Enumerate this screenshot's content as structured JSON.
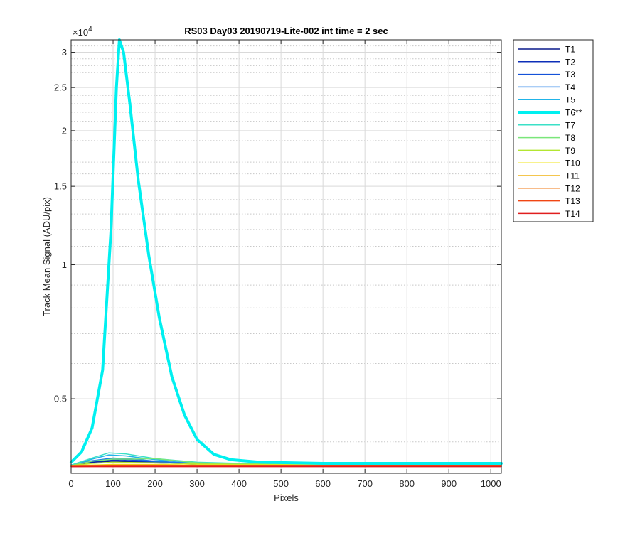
{
  "chart_data": {
    "type": "line",
    "title": "RS03 Day03 20190719-Lite-002 int time = 2 sec",
    "xlabel": "Pixels",
    "ylabel": "Track Mean Signal (ADU/pix)",
    "y_exponent_label": "×10",
    "y_exponent_power": "4",
    "xlim": [
      0,
      1025
    ],
    "ylim": [
      0.34,
      3.2
    ],
    "y_scale": "log",
    "grid": true,
    "minor_grid": true,
    "legend_position": "outside-right",
    "x_ticks": [
      0,
      100,
      200,
      300,
      400,
      500,
      600,
      700,
      800,
      900,
      1000
    ],
    "x_tick_labels": [
      "0",
      "100",
      "200",
      "300",
      "400",
      "500",
      "600",
      "700",
      "800",
      "900",
      "1000"
    ],
    "y_ticks": [
      0.5,
      1,
      1.5,
      2,
      2.5,
      3
    ],
    "y_tick_labels": [
      "0.5",
      "1",
      "1.5",
      "2",
      "2.5",
      "3"
    ],
    "y_minor_gridlines": [
      0.4,
      0.6,
      0.7,
      0.8,
      0.9,
      1.1,
      1.2,
      1.3,
      1.4,
      1.6,
      1.7,
      1.8,
      1.9,
      2.1,
      2.2,
      2.3,
      2.4,
      2.6,
      2.7,
      2.8,
      2.9,
      3.1
    ],
    "series": [
      {
        "name": "T1",
        "color": "#0a1a8c",
        "width": 1.5,
        "x": [
          0,
          50,
          100,
          150,
          200,
          300,
          400,
          600,
          800,
          1025
        ],
        "y": [
          0.355,
          0.36,
          0.362,
          0.361,
          0.359,
          0.357,
          0.356,
          0.356,
          0.356,
          0.356
        ]
      },
      {
        "name": "T2",
        "color": "#0d2fb8",
        "width": 1.5,
        "x": [
          0,
          50,
          100,
          150,
          200,
          300,
          400,
          600,
          800,
          1025
        ],
        "y": [
          0.355,
          0.361,
          0.364,
          0.362,
          0.36,
          0.357,
          0.356,
          0.356,
          0.356,
          0.356
        ]
      },
      {
        "name": "T3",
        "color": "#1452d9",
        "width": 1.5,
        "x": [
          0,
          50,
          100,
          150,
          200,
          300,
          400,
          600,
          800,
          1025
        ],
        "y": [
          0.355,
          0.362,
          0.366,
          0.364,
          0.361,
          0.358,
          0.357,
          0.357,
          0.357,
          0.357
        ]
      },
      {
        "name": "T4",
        "color": "#1a7ae6",
        "width": 1.5,
        "x": [
          0,
          50,
          100,
          150,
          200,
          300,
          400,
          600,
          800,
          1025
        ],
        "y": [
          0.355,
          0.363,
          0.368,
          0.366,
          0.362,
          0.358,
          0.357,
          0.357,
          0.357,
          0.357
        ]
      },
      {
        "name": "T5",
        "color": "#21b4e8",
        "width": 1.5,
        "x": [
          0,
          50,
          90,
          130,
          200,
          300,
          400,
          600,
          800,
          1025
        ],
        "y": [
          0.355,
          0.366,
          0.374,
          0.372,
          0.365,
          0.359,
          0.358,
          0.358,
          0.358,
          0.358
        ]
      },
      {
        "name": "T6**",
        "color": "#00f0f0",
        "width": 4,
        "x": [
          0,
          25,
          50,
          75,
          95,
          108,
          115,
          125,
          140,
          160,
          185,
          210,
          240,
          270,
          300,
          340,
          380,
          450,
          600,
          800,
          1025
        ],
        "y": [
          0.36,
          0.38,
          0.43,
          0.58,
          1.2,
          2.5,
          3.2,
          3.0,
          2.3,
          1.55,
          1.05,
          0.76,
          0.56,
          0.46,
          0.405,
          0.375,
          0.365,
          0.36,
          0.358,
          0.358,
          0.358
        ]
      },
      {
        "name": "T7",
        "color": "#3be0c7",
        "width": 1.5,
        "x": [
          0,
          50,
          90,
          130,
          200,
          300,
          400,
          600,
          800,
          1025
        ],
        "y": [
          0.355,
          0.368,
          0.378,
          0.376,
          0.367,
          0.36,
          0.358,
          0.358,
          0.358,
          0.358
        ]
      },
      {
        "name": "T8",
        "color": "#7ae67a",
        "width": 1.5,
        "x": [
          0,
          50,
          100,
          150,
          200,
          250,
          300,
          400,
          600,
          800,
          1025
        ],
        "y": [
          0.354,
          0.362,
          0.366,
          0.366,
          0.367,
          0.363,
          0.359,
          0.357,
          0.357,
          0.357,
          0.357
        ]
      },
      {
        "name": "T9",
        "color": "#b3e632",
        "width": 1.5,
        "x": [
          0,
          50,
          100,
          200,
          300,
          400,
          600,
          800,
          1025
        ],
        "y": [
          0.354,
          0.358,
          0.36,
          0.359,
          0.357,
          0.356,
          0.356,
          0.356,
          0.356
        ]
      },
      {
        "name": "T10",
        "color": "#f0e61a",
        "width": 1.5,
        "x": [
          0,
          100,
          200,
          300,
          400,
          600,
          800,
          1025
        ],
        "y": [
          0.354,
          0.356,
          0.356,
          0.355,
          0.355,
          0.355,
          0.355,
          0.355
        ]
      },
      {
        "name": "T11",
        "color": "#f0b414",
        "width": 1.5,
        "x": [
          0,
          100,
          200,
          300,
          400,
          600,
          800,
          1025
        ],
        "y": [
          0.353,
          0.355,
          0.355,
          0.354,
          0.354,
          0.354,
          0.354,
          0.354
        ]
      },
      {
        "name": "T12",
        "color": "#f07814",
        "width": 1.5,
        "x": [
          0,
          100,
          200,
          300,
          400,
          600,
          800,
          1025
        ],
        "y": [
          0.353,
          0.354,
          0.354,
          0.354,
          0.353,
          0.353,
          0.353,
          0.353
        ]
      },
      {
        "name": "T13",
        "color": "#f04614",
        "width": 1.5,
        "x": [
          0,
          100,
          200,
          300,
          400,
          600,
          800,
          1025
        ],
        "y": [
          0.352,
          0.353,
          0.353,
          0.353,
          0.353,
          0.353,
          0.353,
          0.353
        ]
      },
      {
        "name": "T14",
        "color": "#e01e1e",
        "width": 1.5,
        "x": [
          0,
          100,
          200,
          300,
          400,
          600,
          800,
          1025
        ],
        "y": [
          0.352,
          0.352,
          0.352,
          0.352,
          0.352,
          0.352,
          0.352,
          0.352
        ]
      }
    ]
  }
}
